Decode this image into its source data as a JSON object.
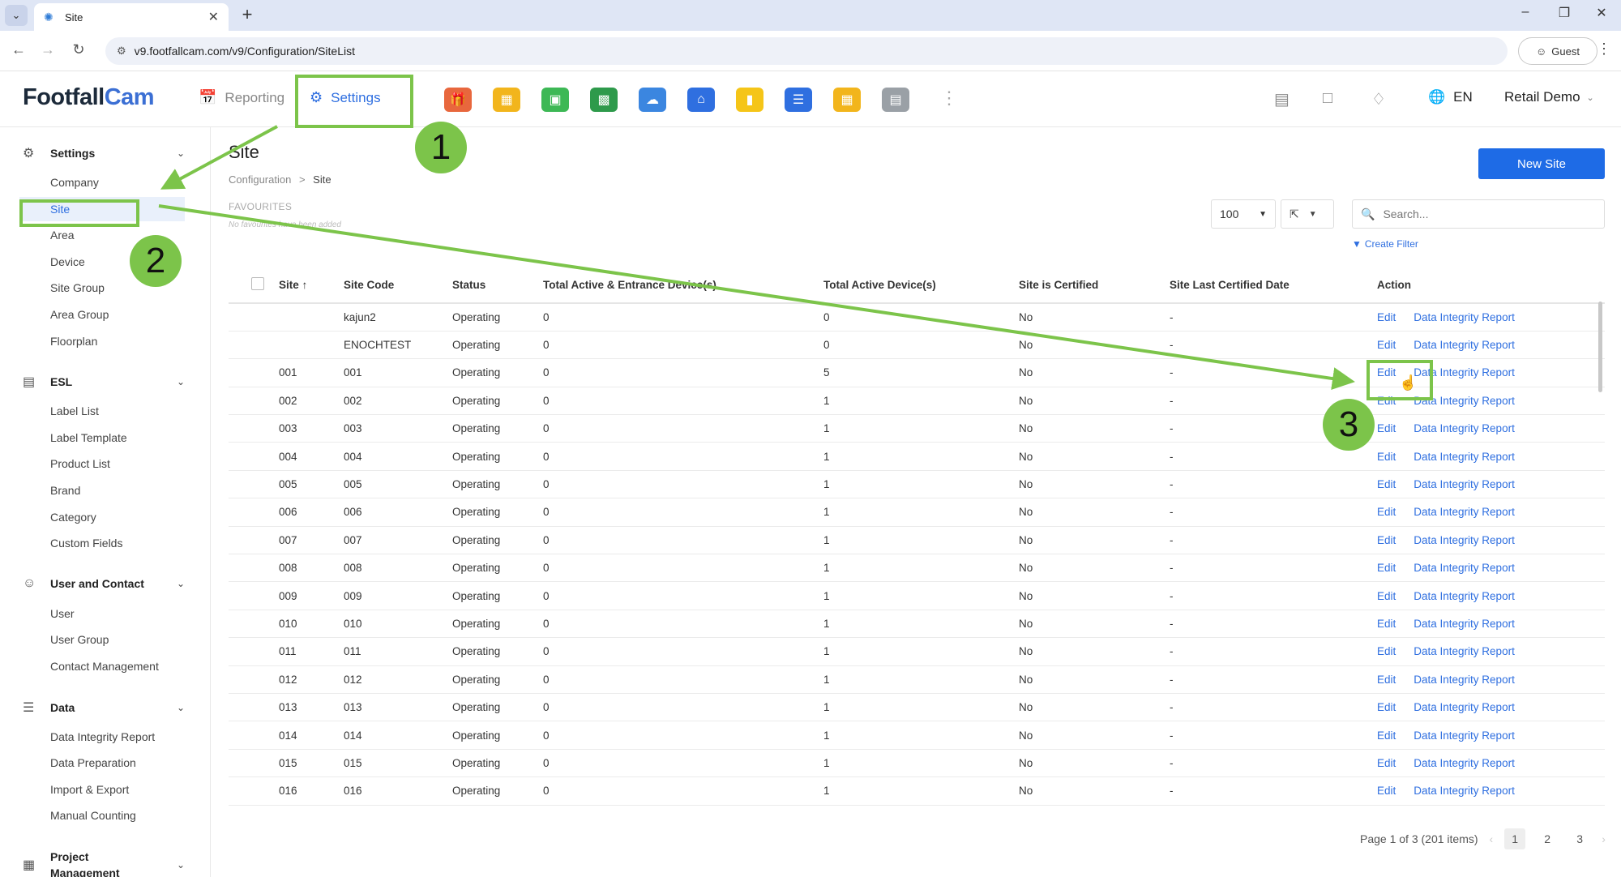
{
  "browser": {
    "tab_title": "Site",
    "url": "v9.footfallcam.com/v9/Configuration/SiteList",
    "profile_label": "Guest"
  },
  "header": {
    "logo_main": "Footfall",
    "logo_accent": "Cam",
    "nav_reporting": "Reporting",
    "nav_settings": "Settings",
    "language": "EN",
    "user_name": "Retail Demo",
    "app_icons": [
      {
        "name": "gift-icon",
        "color": "#e8673d"
      },
      {
        "name": "chart-icon",
        "color": "#f2b51c"
      },
      {
        "name": "calendar-icon",
        "color": "#3db855"
      },
      {
        "name": "spreadsheet-icon",
        "color": "#2e9a4b"
      },
      {
        "name": "weather-icon",
        "color": "#3b86e0"
      },
      {
        "name": "home-icon",
        "color": "#2f6fe0"
      },
      {
        "name": "sticky-note-icon",
        "color": "#f5c518"
      },
      {
        "name": "database-icon",
        "color": "#2f6fe0"
      },
      {
        "name": "frame-icon",
        "color": "#f2b51c"
      },
      {
        "name": "storage-icon",
        "color": "#9aa0a6"
      }
    ]
  },
  "sidebar": {
    "sections": [
      {
        "title": "Settings",
        "items": [
          "Company",
          "Site",
          "Area",
          "Device",
          "Site Group",
          "Area Group",
          "Floorplan"
        ]
      },
      {
        "title": "ESL",
        "items": [
          "Label List",
          "Label Template",
          "Product List",
          "Brand",
          "Category",
          "Custom Fields"
        ]
      },
      {
        "title": "User and Contact",
        "items": [
          "User",
          "User Group",
          "Contact Management"
        ]
      },
      {
        "title": "Data",
        "items": [
          "Data Integrity Report",
          "Data Preparation",
          "Import & Export",
          "Manual Counting"
        ]
      },
      {
        "title": "Project Management",
        "items": []
      }
    ],
    "active_item": "Site"
  },
  "page": {
    "title": "Site",
    "breadcrumb_parent": "Configuration",
    "breadcrumb_sep": ">",
    "breadcrumb_current": "Site",
    "favourites_label": "FAVOURITES",
    "favourites_empty": "No favourites have been added",
    "new_button": "New Site",
    "page_size": "100",
    "search_placeholder": "Search...",
    "create_filter": "Create Filter"
  },
  "table": {
    "columns": [
      "Site",
      "Site Code",
      "Status",
      "Total Active & Entrance Device(s)",
      "Total Active Device(s)",
      "Site is Certified",
      "Site Last Certified Date",
      "Action"
    ],
    "action_edit": "Edit",
    "action_report": "Data Integrity Report",
    "rows": [
      [
        "",
        "kajun2",
        "Operating",
        "0",
        "0",
        "No",
        "-"
      ],
      [
        "",
        "ENOCHTEST",
        "Operating",
        "0",
        "0",
        "No",
        "-"
      ],
      [
        "001",
        "001",
        "Operating",
        "0",
        "5",
        "No",
        "-"
      ],
      [
        "002",
        "002",
        "Operating",
        "0",
        "1",
        "No",
        "-"
      ],
      [
        "003",
        "003",
        "Operating",
        "0",
        "1",
        "No",
        "-"
      ],
      [
        "004",
        "004",
        "Operating",
        "0",
        "1",
        "No",
        "-"
      ],
      [
        "005",
        "005",
        "Operating",
        "0",
        "1",
        "No",
        "-"
      ],
      [
        "006",
        "006",
        "Operating",
        "0",
        "1",
        "No",
        "-"
      ],
      [
        "007",
        "007",
        "Operating",
        "0",
        "1",
        "No",
        "-"
      ],
      [
        "008",
        "008",
        "Operating",
        "0",
        "1",
        "No",
        "-"
      ],
      [
        "009",
        "009",
        "Operating",
        "0",
        "1",
        "No",
        "-"
      ],
      [
        "010",
        "010",
        "Operating",
        "0",
        "1",
        "No",
        "-"
      ],
      [
        "011",
        "011",
        "Operating",
        "0",
        "1",
        "No",
        "-"
      ],
      [
        "012",
        "012",
        "Operating",
        "0",
        "1",
        "No",
        "-"
      ],
      [
        "013",
        "013",
        "Operating",
        "0",
        "1",
        "No",
        "-"
      ],
      [
        "014",
        "014",
        "Operating",
        "0",
        "1",
        "No",
        "-"
      ],
      [
        "015",
        "015",
        "Operating",
        "0",
        "1",
        "No",
        "-"
      ],
      [
        "016",
        "016",
        "Operating",
        "0",
        "1",
        "No",
        "-"
      ]
    ]
  },
  "pagination": {
    "summary": "Page 1 of 3 (201 items)",
    "pages": [
      "1",
      "2",
      "3"
    ],
    "current": "1"
  },
  "annotations": {
    "step1": "1",
    "step2": "2",
    "step3": "3",
    "color": "#7cc44a"
  }
}
